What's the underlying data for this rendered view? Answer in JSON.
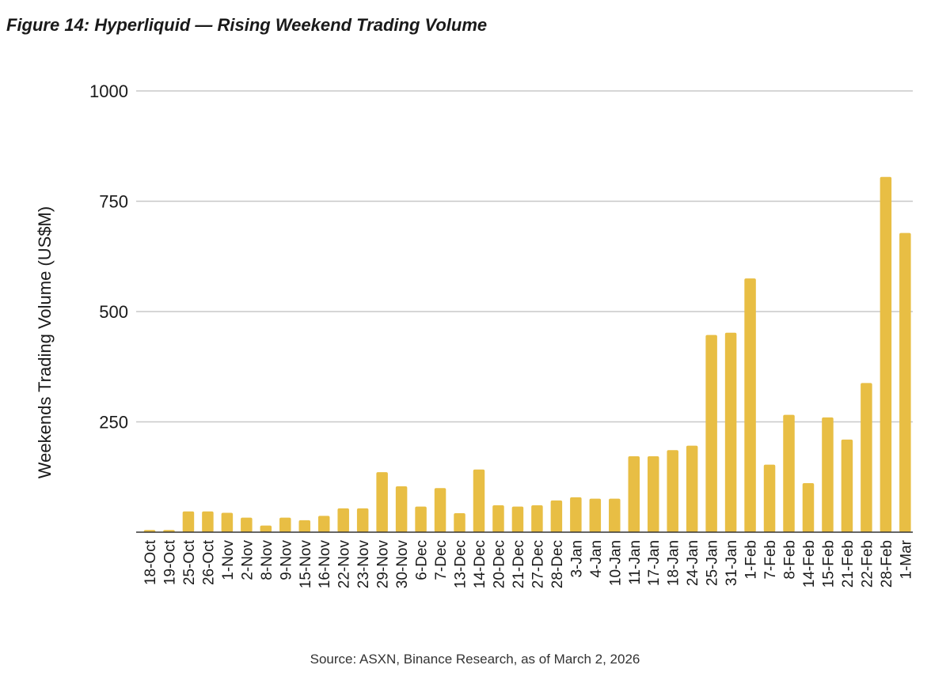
{
  "figure_title": "Figure 14: Hyperliquid — Rising Weekend Trading Volume",
  "source_note": "Source: ASXN, Binance Research, as of March 2, 2026",
  "chart_data": {
    "type": "bar",
    "title": "",
    "xlabel": "",
    "ylabel": "Weekends Trading Volume (US$M)",
    "ylim": [
      0,
      1000
    ],
    "yticks": [
      250,
      500,
      750,
      1000
    ],
    "grid": true,
    "bar_color": "#E8BE44",
    "categories": [
      "18-Oct",
      "19-Oct",
      "25-Oct",
      "26-Oct",
      "1-Nov",
      "2-Nov",
      "8-Nov",
      "9-Nov",
      "15-Nov",
      "16-Nov",
      "22-Nov",
      "23-Nov",
      "29-Nov",
      "30-Nov",
      "6-Dec",
      "7-Dec",
      "13-Dec",
      "14-Dec",
      "20-Dec",
      "21-Dec",
      "27-Dec",
      "28-Dec",
      "3-Jan",
      "4-Jan",
      "10-Jan",
      "11-Jan",
      "17-Jan",
      "18-Jan",
      "24-Jan",
      "25-Jan",
      "31-Jan",
      "1-Feb",
      "7-Feb",
      "8-Feb",
      "14-Feb",
      "15-Feb",
      "21-Feb",
      "22-Feb",
      "28-Feb",
      "1-Mar"
    ],
    "values": [
      5,
      5,
      47,
      47,
      44,
      33,
      15,
      33,
      27,
      37,
      54,
      54,
      136,
      104,
      58,
      100,
      43,
      142,
      61,
      58,
      61,
      72,
      79,
      76,
      76,
      172,
      172,
      186,
      196,
      447,
      452,
      575,
      153,
      266,
      111,
      260,
      210,
      338,
      805,
      678
    ]
  }
}
